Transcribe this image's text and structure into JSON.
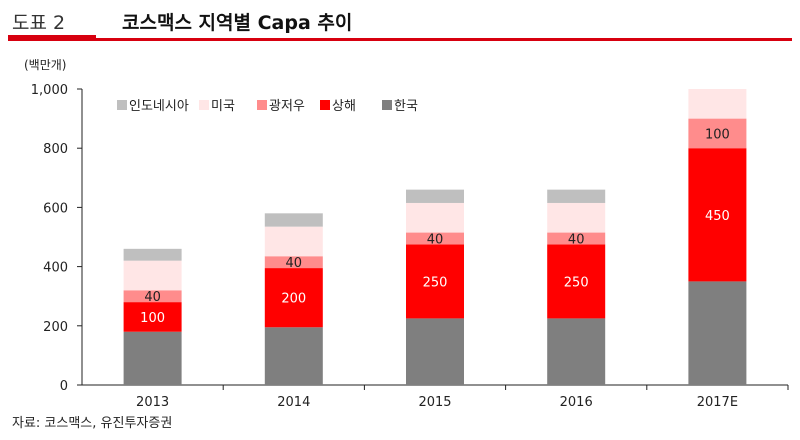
{
  "header": {
    "figure_label": "도표 2",
    "title": "코스맥스 지역별 Capa 추이"
  },
  "unit_label": "(백만개)",
  "source": "자료: 코스맥스, 유진투자증권",
  "colors": {
    "accent": "#d7000f",
    "한국": "#7f7f7f",
    "상해": "#ff0000",
    "광저우": "#ff8c8c",
    "미국": "#ffe6e6",
    "인도네시아": "#bfbfbf"
  },
  "chart_data": {
    "type": "bar",
    "stacked": true,
    "categories": [
      "2013",
      "2014",
      "2015",
      "2016",
      "2017E"
    ],
    "ylim": [
      0,
      1000
    ],
    "yticks": [
      0,
      200,
      400,
      600,
      800,
      1000
    ],
    "ytick_labels": [
      "0",
      "200",
      "400",
      "600",
      "800",
      "1,000"
    ],
    "grid": false,
    "legend_position": "top-left",
    "legend_order": [
      "인도네시아",
      "미국",
      "광저우",
      "상해",
      "한국"
    ],
    "series": [
      {
        "name": "한국",
        "values": [
          180,
          195,
          225,
          225,
          350
        ],
        "labels": [
          "",
          "",
          "",
          "",
          ""
        ]
      },
      {
        "name": "상해",
        "values": [
          100,
          200,
          250,
          250,
          450
        ],
        "labels": [
          "100",
          "200",
          "250",
          "250",
          "450"
        ]
      },
      {
        "name": "광저우",
        "values": [
          40,
          40,
          40,
          40,
          100
        ],
        "labels": [
          "40",
          "40",
          "40",
          "40",
          "100"
        ]
      },
      {
        "name": "미국",
        "values": [
          100,
          100,
          100,
          100,
          100
        ],
        "labels": [
          "",
          "",
          "",
          "",
          ""
        ]
      },
      {
        "name": "인도네시아",
        "values": [
          40,
          45,
          45,
          45,
          0
        ],
        "labels": [
          "",
          "",
          "",
          "",
          ""
        ]
      }
    ]
  }
}
